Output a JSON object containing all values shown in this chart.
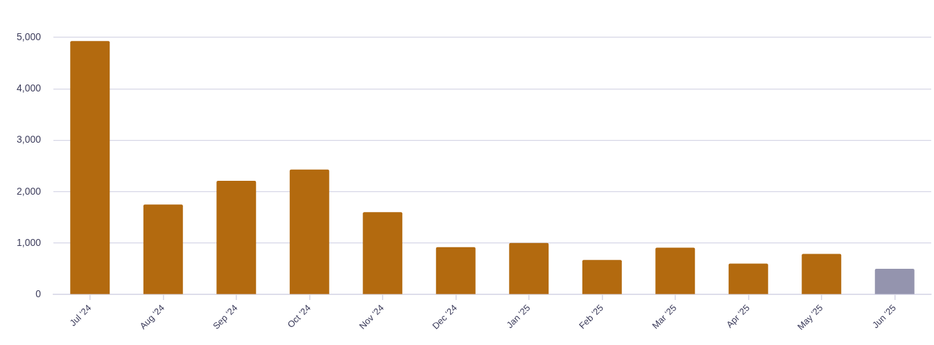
{
  "chart_data": {
    "type": "bar",
    "categories": [
      "Jul '24",
      "Aug '24",
      "Sep '24",
      "Oct '24",
      "Nov '24",
      "Dec '24",
      "Jan '25",
      "Feb '25",
      "Mar '25",
      "Apr '25",
      "May '25",
      "Jun '25"
    ],
    "values": [
      4930,
      1750,
      2210,
      2430,
      1600,
      920,
      1000,
      670,
      910,
      600,
      790,
      500
    ],
    "colors": [
      "#b36a0f",
      "#b36a0f",
      "#b36a0f",
      "#b36a0f",
      "#b36a0f",
      "#b36a0f",
      "#b36a0f",
      "#b36a0f",
      "#b36a0f",
      "#b36a0f",
      "#b36a0f",
      "#9494ae"
    ],
    "ylim": [
      0,
      5000
    ],
    "yticks": [
      0,
      {
        "value": 1000,
        "label": "1,000"
      },
      {
        "value": 2000,
        "label": "2,000"
      },
      {
        "value": 3000,
        "label": "3,000"
      },
      {
        "value": 4000,
        "label": "4,000"
      },
      {
        "value": 5000,
        "label": "5,000"
      }
    ],
    "grid": "y"
  }
}
